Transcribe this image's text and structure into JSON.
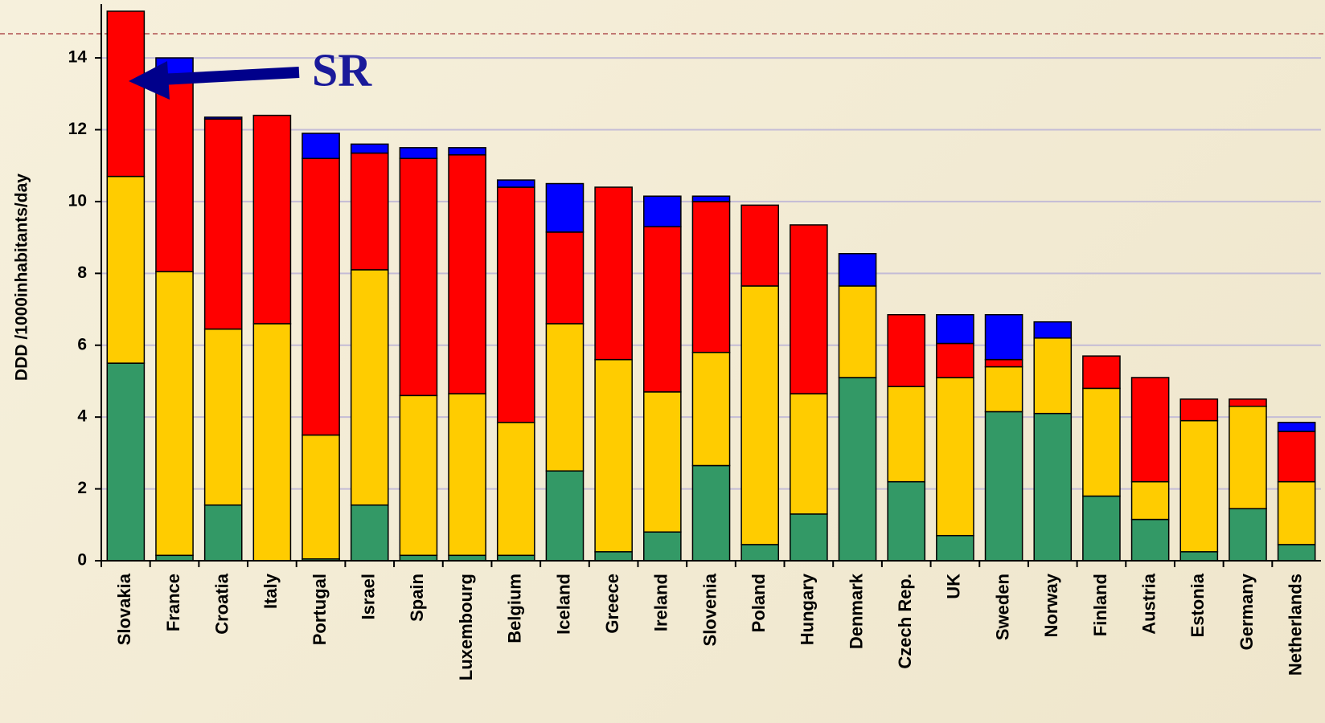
{
  "chart_data": {
    "type": "stacked_bar",
    "y_label": "DDD /1000inhabitants/day",
    "annotation": "SR",
    "categories": [
      "Slovakia",
      "France",
      "Croatia",
      "Italy",
      "Portugal",
      "Israel",
      "Spain",
      "Luxembourg",
      "Belgium",
      "Iceland",
      "Greece",
      "Ireland",
      "Slovenia",
      "Poland",
      "Hungary",
      "Denmark",
      "Czech Rep.",
      "UK",
      "Sweden",
      "Norway",
      "Finland",
      "Austria",
      "Estonia",
      "Germany",
      "Netherlands"
    ],
    "series": [
      {
        "color": "#339966",
        "values": [
          5.5,
          0.15,
          1.55,
          0,
          0.05,
          1.55,
          0.15,
          0.15,
          0.15,
          2.5,
          0.25,
          0.8,
          2.65,
          0.45,
          1.3,
          5.1,
          2.2,
          0.7,
          4.15,
          4.1,
          1.8,
          1.15,
          0.25,
          1.45,
          0.45
        ]
      },
      {
        "color": "#ffcc00",
        "values": [
          5.2,
          7.9,
          4.9,
          6.6,
          3.45,
          6.55,
          4.45,
          4.5,
          3.7,
          4.1,
          5.35,
          3.9,
          3.15,
          7.2,
          3.35,
          2.55,
          2.65,
          4.4,
          1.25,
          2.1,
          3.0,
          1.05,
          3.65,
          2.85,
          1.75
        ]
      },
      {
        "color": "#ff0000",
        "values": [
          4.6,
          5.5,
          5.85,
          5.8,
          7.7,
          3.25,
          6.6,
          6.65,
          6.55,
          2.55,
          4.8,
          4.6,
          4.2,
          2.25,
          4.7,
          0,
          2.0,
          0.95,
          0.2,
          0,
          0.9,
          2.9,
          0.6,
          0.2,
          1.4
        ]
      },
      {
        "color": "#0000ff",
        "values": [
          0,
          0.45,
          0.05,
          0,
          0.7,
          0.25,
          0.3,
          0.2,
          0.2,
          1.35,
          0,
          0.85,
          0.15,
          0,
          0,
          0.9,
          0,
          0.8,
          1.25,
          0.45,
          0,
          0,
          0,
          0,
          0.25
        ]
      }
    ],
    "ylim": [
      0,
      15.5
    ],
    "yticks": [
      0,
      2,
      4,
      6,
      8,
      10,
      12,
      14
    ],
    "grid": true
  }
}
